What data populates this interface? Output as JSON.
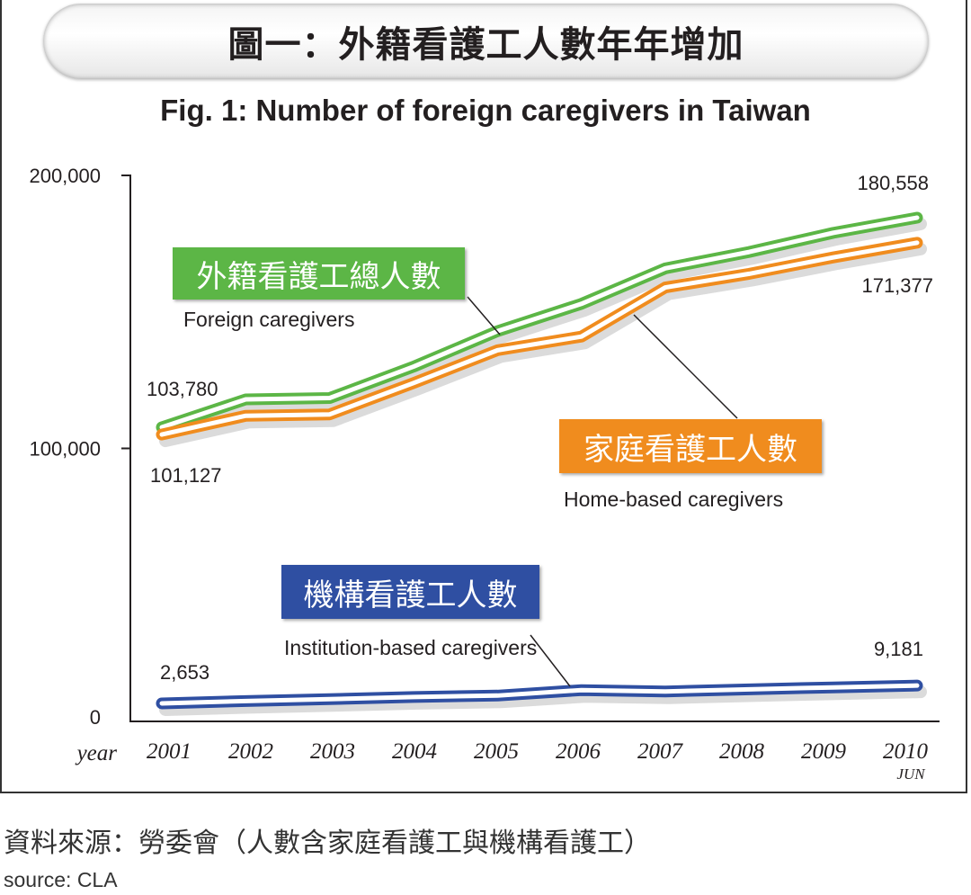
{
  "header": {
    "title_zh": "圖一：外籍看護工人數年年增加",
    "title_en": "Fig. 1: Number of foreign caregivers in Taiwan"
  },
  "chart_data": {
    "type": "line",
    "title": "Fig. 1: Number of foreign caregivers in Taiwan",
    "xlabel": "year",
    "ylabel": "",
    "categories": [
      "2001",
      "2002",
      "2003",
      "2004",
      "2005",
      "2006",
      "2007",
      "2008",
      "2009",
      "2010"
    ],
    "last_category_note": "JUN",
    "yticks": [
      "0",
      "100,000",
      "200,000"
    ],
    "ylim": [
      0,
      200000
    ],
    "series": [
      {
        "name_zh": "外籍看護工總人數",
        "name_en": "Foreign caregivers",
        "color": "#5cb646",
        "values": [
          103780,
          114000,
          114500,
          126000,
          139000,
          149000,
          162000,
          168000,
          175000,
          180558
        ],
        "labels": [
          "103,780",
          "180,558"
        ]
      },
      {
        "name_zh": "家庭看護工人數",
        "name_en": "Home-based caregivers",
        "color": "#f08c1e",
        "values": [
          101127,
          108000,
          108500,
          120000,
          132000,
          137000,
          155000,
          160000,
          166000,
          171377
        ],
        "labels": [
          "101,127",
          "171,377"
        ]
      },
      {
        "name_zh": "機構看護工人數",
        "name_en": "Institution-based caregivers",
        "color": "#2f4fa2",
        "values": [
          2653,
          3500,
          4200,
          5000,
          5500,
          7500,
          7000,
          7800,
          8500,
          9181
        ],
        "labels": [
          "2,653",
          "9,181"
        ]
      }
    ]
  },
  "footer": {
    "source_zh": "資料來源：勞委會（人數含家庭看護工與機構看護工）",
    "source_en": "source: CLA"
  }
}
